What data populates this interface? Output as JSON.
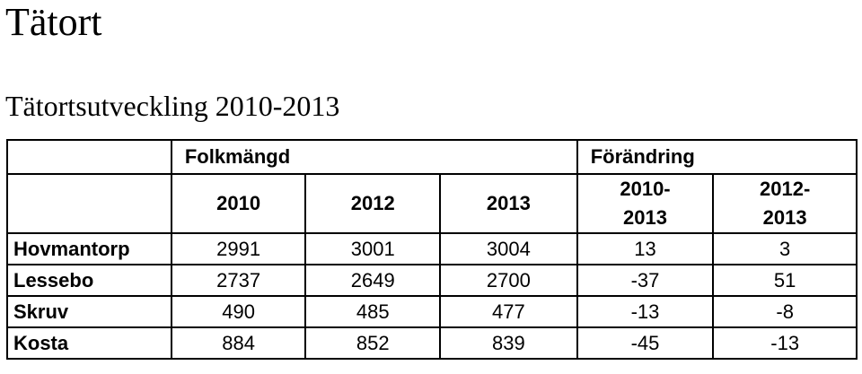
{
  "header": {
    "title": "Tätort",
    "subtitle": "Tätortsutveckling 2010-2013"
  },
  "table": {
    "groups": [
      {
        "label": "Folkmängd",
        "span": 3
      },
      {
        "label": "Förändring",
        "span": 2
      }
    ],
    "columns": [
      "2010",
      "2012",
      "2013",
      "2010-2013",
      "2012-2013"
    ],
    "rows": [
      [
        "Hovmantorp",
        "2991",
        "3001",
        "3004",
        "13",
        "3"
      ],
      [
        "Lessebo",
        "2737",
        "2649",
        "2700",
        "-37",
        "51"
      ],
      [
        "Skruv",
        "490",
        "485",
        "477",
        "-13",
        "-8"
      ],
      [
        "Kosta",
        "884",
        "852",
        "839",
        "-45",
        "-13"
      ]
    ]
  }
}
